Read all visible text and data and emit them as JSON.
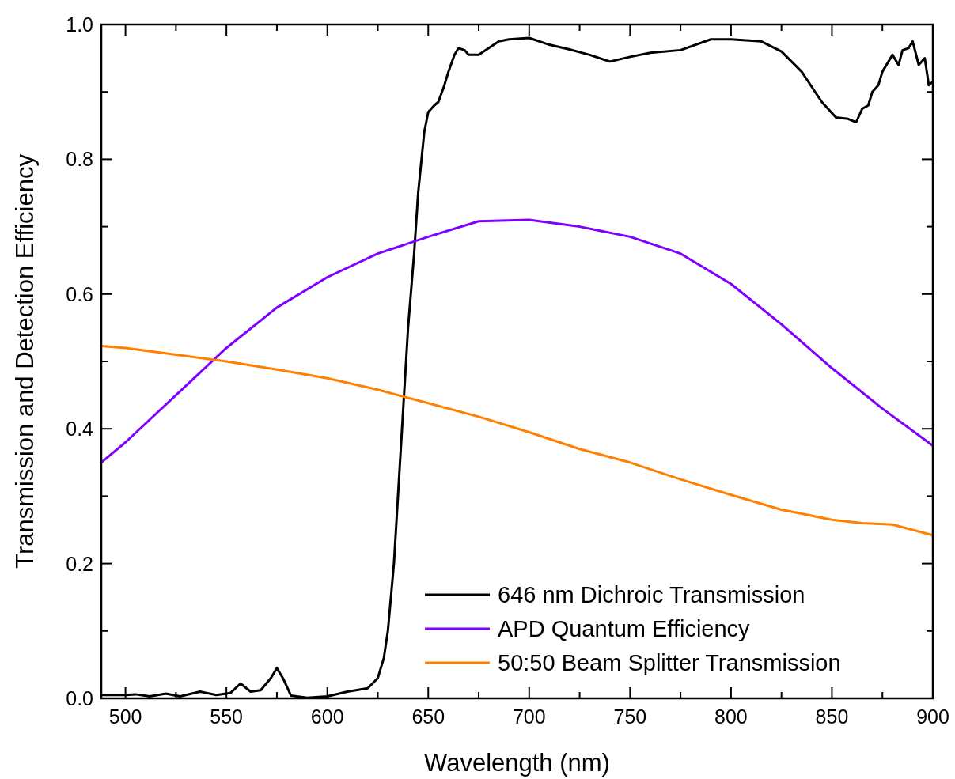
{
  "chart_data": {
    "type": "line",
    "xlabel": "Wavelength (nm)",
    "ylabel": "Transmission and Detection Efficiency",
    "xlim": [
      488,
      900
    ],
    "ylim": [
      0,
      1
    ],
    "xticks": [
      500,
      {
        "value": 525,
        "label": null
      },
      550,
      {
        "value": 575,
        "label": null
      },
      600,
      {
        "value": 625,
        "label": null
      },
      650,
      {
        "value": 675,
        "label": null
      },
      700,
      {
        "value": 725,
        "label": null
      },
      750,
      {
        "value": 775,
        "label": null
      },
      800,
      {
        "value": 825,
        "label": null
      },
      850,
      {
        "value": 875,
        "label": null
      },
      900
    ],
    "yticks": [
      {
        "value": 0,
        "label": "0.0"
      },
      {
        "value": 0.1,
        "label": null
      },
      0.2,
      {
        "value": 0.3,
        "label": null
      },
      0.4,
      {
        "value": 0.5,
        "label": null
      },
      0.6,
      {
        "value": 0.7,
        "label": null
      },
      0.8,
      {
        "value": 0.9,
        "label": null
      },
      {
        "value": 1,
        "label": "1.0"
      }
    ],
    "grid": false,
    "legend": "bottom right",
    "line_style": "solid",
    "marker": "none",
    "series": [
      {
        "name": "646 nm Dichroic Transmission",
        "color": "#000000",
        "x": [
          488,
          500,
          505,
          512,
          520,
          527,
          537,
          545,
          552,
          557,
          562,
          567,
          572,
          575,
          578,
          582,
          590,
          600,
          610,
          620,
          625,
          628,
          630,
          633,
          635,
          638,
          640,
          643,
          645,
          648,
          650,
          653,
          655,
          658,
          660,
          663,
          665,
          668,
          670,
          675,
          680,
          685,
          690,
          700,
          710,
          720,
          730,
          740,
          750,
          760,
          775,
          790,
          800,
          815,
          825,
          835,
          845,
          852,
          858,
          862,
          865,
          868,
          870,
          873,
          875,
          878,
          880,
          883,
          885,
          888,
          890,
          893,
          896,
          898,
          900
        ],
        "values": [
          0.005,
          0.005,
          0.006,
          0.003,
          0.007,
          0.003,
          0.01,
          0.005,
          0.008,
          0.022,
          0.01,
          0.012,
          0.03,
          0.045,
          0.03,
          0.004,
          0.001,
          0.003,
          0.01,
          0.015,
          0.03,
          0.06,
          0.1,
          0.2,
          0.3,
          0.45,
          0.55,
          0.66,
          0.75,
          0.84,
          0.87,
          0.88,
          0.885,
          0.91,
          0.93,
          0.955,
          0.965,
          0.962,
          0.955,
          0.955,
          0.965,
          0.975,
          0.978,
          0.98,
          0.97,
          0.963,
          0.955,
          0.945,
          0.952,
          0.958,
          0.962,
          0.978,
          0.978,
          0.975,
          0.96,
          0.93,
          0.885,
          0.862,
          0.86,
          0.855,
          0.875,
          0.88,
          0.9,
          0.91,
          0.93,
          0.945,
          0.955,
          0.94,
          0.962,
          0.965,
          0.975,
          0.94,
          0.95,
          0.91,
          0.915
        ]
      },
      {
        "name": "APD Quantum Efficiency",
        "color": "#8000ff",
        "x": [
          488,
          500,
          525,
          550,
          575,
          600,
          625,
          650,
          675,
          700,
          725,
          750,
          775,
          800,
          825,
          850,
          875,
          900
        ],
        "values": [
          0.35,
          0.38,
          0.45,
          0.52,
          0.58,
          0.625,
          0.66,
          0.685,
          0.708,
          0.71,
          0.7,
          0.685,
          0.66,
          0.615,
          0.555,
          0.49,
          0.43,
          0.375
        ]
      },
      {
        "name": "50:50 Beam Splitter Transmission",
        "color": "#ff8000",
        "x": [
          488,
          500,
          525,
          550,
          575,
          600,
          625,
          650,
          675,
          700,
          725,
          750,
          775,
          800,
          825,
          850,
          865,
          880,
          900
        ],
        "values": [
          0.523,
          0.52,
          0.51,
          0.5,
          0.488,
          0.475,
          0.458,
          0.438,
          0.418,
          0.395,
          0.37,
          0.35,
          0.325,
          0.302,
          0.28,
          0.265,
          0.26,
          0.258,
          0.242
        ]
      }
    ]
  }
}
